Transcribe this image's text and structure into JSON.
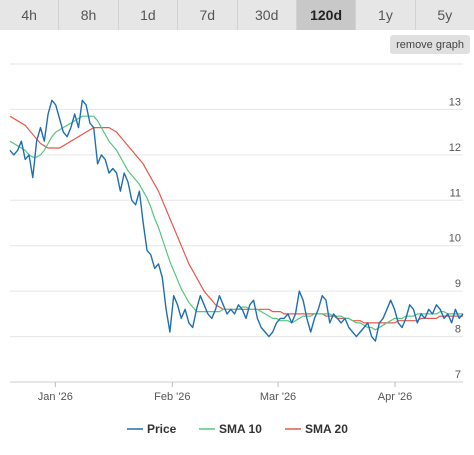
{
  "tabs": [
    {
      "label": "4h",
      "active": false
    },
    {
      "label": "8h",
      "active": false
    },
    {
      "label": "1d",
      "active": false
    },
    {
      "label": "7d",
      "active": false
    },
    {
      "label": "30d",
      "active": false
    },
    {
      "label": "120d",
      "active": true
    },
    {
      "label": "1y",
      "active": false
    },
    {
      "label": "5y",
      "active": false
    }
  ],
  "remove_graph_label": "remove graph",
  "chart_data": {
    "type": "line",
    "x_start": "2025-12-20",
    "x_end": "2026-04-19",
    "x_ticks": [
      {
        "label": "Jan '26",
        "date": "2026-01-01"
      },
      {
        "label": "Feb '26",
        "date": "2026-02-01"
      },
      {
        "label": "Mar '26",
        "date": "2026-03-01"
      },
      {
        "label": "Apr '26",
        "date": "2026-04-01"
      }
    ],
    "y_ticks": [
      7,
      8,
      9,
      10,
      11,
      12,
      13
    ],
    "ylim": [
      7,
      14
    ],
    "grid": true,
    "legend_position": "bottom",
    "series": [
      {
        "name": "Price",
        "color": "#1f6fb2",
        "values": [
          12.1,
          12.0,
          12.1,
          12.3,
          11.9,
          12.0,
          11.5,
          12.3,
          12.6,
          12.3,
          12.9,
          13.2,
          13.1,
          12.8,
          12.5,
          12.4,
          12.6,
          12.9,
          12.6,
          13.2,
          13.1,
          12.7,
          12.6,
          11.8,
          12.0,
          11.9,
          11.6,
          11.7,
          11.6,
          11.2,
          11.6,
          11.4,
          11.0,
          10.9,
          11.2,
          10.5,
          9.9,
          9.8,
          9.5,
          9.6,
          9.3,
          8.6,
          8.1,
          8.9,
          8.7,
          8.4,
          8.6,
          8.3,
          8.2,
          8.6,
          8.9,
          8.7,
          8.5,
          8.4,
          8.6,
          8.9,
          8.7,
          8.5,
          8.6,
          8.5,
          8.7,
          8.6,
          8.4,
          8.7,
          8.8,
          8.4,
          8.2,
          8.1,
          8.0,
          8.1,
          8.3,
          8.4,
          8.4,
          8.5,
          8.3,
          8.5,
          9.0,
          8.8,
          8.4,
          8.1,
          8.4,
          8.6,
          8.9,
          8.8,
          8.3,
          8.5,
          8.4,
          8.3,
          8.4,
          8.2,
          8.1,
          8.0,
          8.1,
          8.2,
          8.3,
          8.0,
          7.9,
          8.3,
          8.4,
          8.6,
          8.8,
          8.6,
          8.3,
          8.2,
          8.4,
          8.7,
          8.6,
          8.3,
          8.5,
          8.4,
          8.6,
          8.5,
          8.7,
          8.6,
          8.4,
          8.5,
          8.3,
          8.6,
          8.4,
          8.5
        ]
      },
      {
        "name": "SMA 10",
        "color": "#57c67f",
        "values": [
          12.3,
          12.25,
          12.2,
          12.15,
          12.1,
          12.0,
          11.95,
          11.95,
          12.0,
          12.1,
          12.25,
          12.4,
          12.5,
          12.55,
          12.6,
          12.65,
          12.7,
          12.75,
          12.8,
          12.85,
          12.85,
          12.85,
          12.85,
          12.75,
          12.6,
          12.45,
          12.3,
          12.2,
          12.1,
          11.95,
          11.8,
          11.65,
          11.55,
          11.45,
          11.35,
          11.2,
          11.05,
          10.85,
          10.6,
          10.4,
          10.15,
          9.9,
          9.65,
          9.45,
          9.25,
          9.05,
          8.9,
          8.75,
          8.65,
          8.55,
          8.55,
          8.55,
          8.55,
          8.55,
          8.55,
          8.55,
          8.6,
          8.6,
          8.6,
          8.6,
          8.6,
          8.65,
          8.65,
          8.6,
          8.6,
          8.6,
          8.55,
          8.5,
          8.45,
          8.4,
          8.4,
          8.35,
          8.35,
          8.35,
          8.3,
          8.35,
          8.4,
          8.45,
          8.45,
          8.45,
          8.5,
          8.5,
          8.5,
          8.5,
          8.5,
          8.45,
          8.45,
          8.45,
          8.4,
          8.4,
          8.35,
          8.3,
          8.3,
          8.25,
          8.2,
          8.2,
          8.15,
          8.2,
          8.25,
          8.3,
          8.35,
          8.4,
          8.4,
          8.4,
          8.45,
          8.45,
          8.45,
          8.5,
          8.5,
          8.5,
          8.5,
          8.5,
          8.5,
          8.55,
          8.55,
          8.5,
          8.5,
          8.5,
          8.5,
          8.5
        ]
      },
      {
        "name": "SMA 20",
        "color": "#e8584a",
        "values": [
          12.85,
          12.8,
          12.75,
          12.7,
          12.65,
          12.55,
          12.45,
          12.35,
          12.25,
          12.2,
          12.15,
          12.15,
          12.15,
          12.15,
          12.2,
          12.25,
          12.3,
          12.35,
          12.4,
          12.45,
          12.5,
          12.55,
          12.6,
          12.6,
          12.6,
          12.6,
          12.6,
          12.55,
          12.5,
          12.4,
          12.3,
          12.2,
          12.1,
          12.0,
          11.9,
          11.8,
          11.65,
          11.5,
          11.35,
          11.2,
          11.0,
          10.8,
          10.6,
          10.4,
          10.2,
          10.0,
          9.8,
          9.6,
          9.45,
          9.3,
          9.15,
          9.0,
          8.9,
          8.8,
          8.7,
          8.65,
          8.6,
          8.6,
          8.6,
          8.6,
          8.6,
          8.6,
          8.6,
          8.6,
          8.6,
          8.6,
          8.6,
          8.6,
          8.6,
          8.55,
          8.55,
          8.55,
          8.5,
          8.5,
          8.5,
          8.5,
          8.5,
          8.5,
          8.5,
          8.5,
          8.5,
          8.5,
          8.5,
          8.45,
          8.45,
          8.45,
          8.4,
          8.4,
          8.4,
          8.4,
          8.35,
          8.35,
          8.35,
          8.3,
          8.3,
          8.3,
          8.3,
          8.3,
          8.3,
          8.3,
          8.3,
          8.3,
          8.35,
          8.35,
          8.35,
          8.35,
          8.35,
          8.35,
          8.4,
          8.4,
          8.4,
          8.4,
          8.4,
          8.45,
          8.45,
          8.45,
          8.45,
          8.45,
          8.45,
          8.45
        ]
      }
    ]
  }
}
